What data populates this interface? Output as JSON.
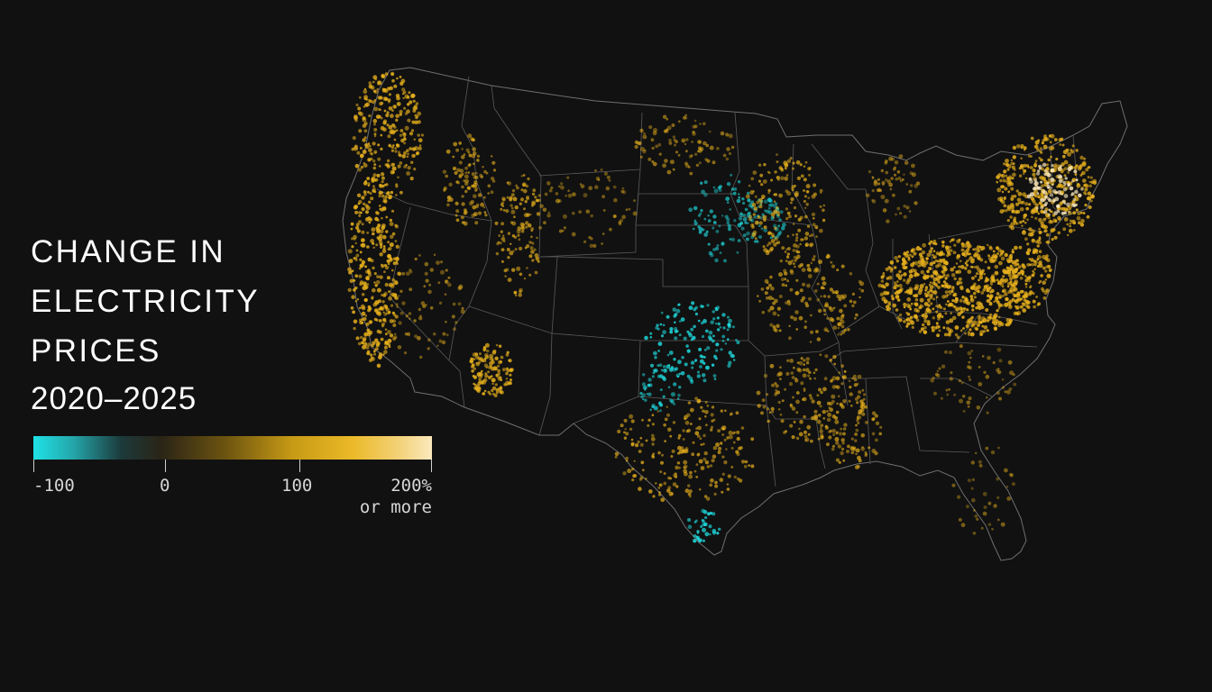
{
  "title": {
    "lines": [
      "CHANGE IN",
      "ELECTRICITY",
      "PRICES"
    ],
    "years": "2020–2025"
  },
  "legend": {
    "ticks": [
      {
        "value": -100,
        "label": "-100"
      },
      {
        "value": 0,
        "label": "0"
      },
      {
        "value": 100,
        "label": "100"
      },
      {
        "value": 200,
        "label": "200%"
      }
    ],
    "max_note": "or more",
    "color_stops": [
      "#1fe2e6",
      "#1c3a3b",
      "#6b5310",
      "#ebb928",
      "#fbe9bd"
    ]
  },
  "map": {
    "region": "Contiguous United States",
    "layer": "state-boundaries",
    "encoding": "point color = percent change in electricity price",
    "colors": {
      "background": "#111111",
      "border": "#7a7a7a",
      "decrease": "#1fe2e6",
      "increase": "#e7b01c",
      "large_increase": "#fbe9bd"
    }
  }
}
